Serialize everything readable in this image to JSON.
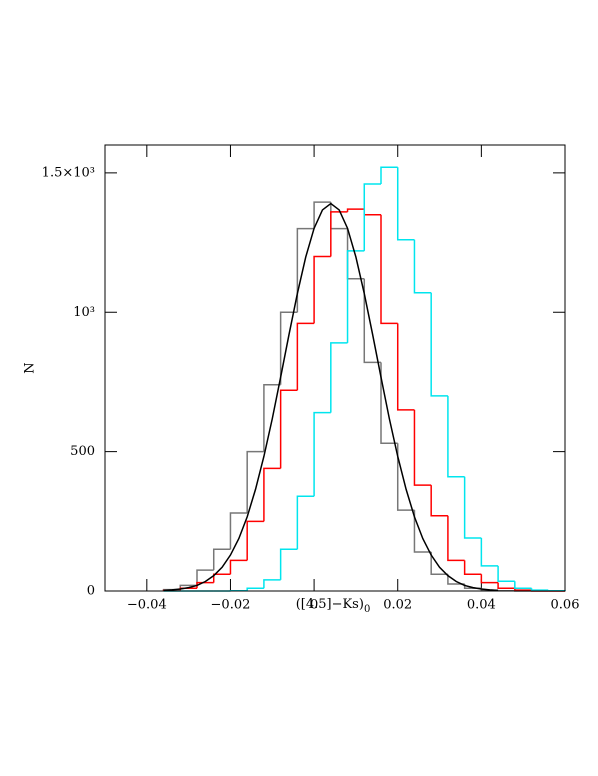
{
  "chart_data": {
    "type": "histogram",
    "x_label": "([4.5]−Ks)",
    "x_label_sub": "0",
    "y_label": "N",
    "xlim": [
      -0.05,
      0.06
    ],
    "ylim": [
      0,
      1600
    ],
    "xticks": [
      {
        "value": -0.04,
        "label": "−0.04"
      },
      {
        "value": -0.02,
        "label": "−0.02"
      },
      0,
      0.02,
      0.04,
      0.06
    ],
    "yticks": [
      0,
      500,
      {
        "value": 1000,
        "label": "10³"
      },
      {
        "value": 1500,
        "label": "1.5×10³"
      }
    ],
    "bins": [
      -0.036,
      -0.032,
      -0.028,
      -0.024,
      -0.02,
      -0.016,
      -0.012,
      -0.008,
      -0.004,
      0,
      0.004,
      0.008,
      0.012,
      0.016,
      0.02,
      0.024,
      0.028,
      0.032,
      0.036,
      0.04,
      0.044,
      0.048,
      0.052,
      0.056,
      0.06
    ],
    "series": [
      {
        "color": "#777777",
        "values": [
          5,
          20,
          75,
          150,
          280,
          500,
          740,
          1000,
          1300,
          1395,
          1300,
          1120,
          820,
          530,
          290,
          140,
          60,
          25,
          10,
          3,
          1,
          0,
          0,
          0
        ]
      },
      {
        "color": "#ff0000",
        "values": [
          2,
          10,
          30,
          60,
          110,
          250,
          440,
          720,
          960,
          1200,
          1360,
          1370,
          1350,
          960,
          650,
          380,
          270,
          110,
          60,
          30,
          10,
          3,
          0,
          0
        ]
      },
      {
        "color": "#00e5ee",
        "values": [
          0,
          0,
          0,
          0,
          1,
          10,
          40,
          150,
          340,
          640,
          890,
          1220,
          1460,
          1520,
          1260,
          1070,
          700,
          410,
          190,
          90,
          35,
          10,
          3,
          1
        ]
      }
    ],
    "curve": {
      "type": "line",
      "color": "#000000",
      "x": [
        -0.036,
        -0.034,
        -0.032,
        -0.03,
        -0.028,
        -0.026,
        -0.024,
        -0.022,
        -0.02,
        -0.018,
        -0.016,
        -0.014,
        -0.012,
        -0.01,
        -0.008,
        -0.006,
        -0.004,
        -0.002,
        0,
        0.002,
        0.004,
        0.006,
        0.008,
        0.01,
        0.012,
        0.014,
        0.016,
        0.018,
        0.02,
        0.022,
        0.024,
        0.026,
        0.028,
        0.03,
        0.032,
        0.034,
        0.036,
        0.038,
        0.04,
        0.042,
        0.044
      ],
      "values": [
        2,
        4,
        7,
        12,
        20,
        34,
        55,
        85,
        129,
        188,
        266,
        365,
        483,
        618,
        767,
        920,
        1067,
        1198,
        1301,
        1367,
        1390,
        1367,
        1301,
        1198,
        1067,
        920,
        767,
        618,
        483,
        365,
        266,
        188,
        129,
        85,
        55,
        34,
        20,
        12,
        7,
        4,
        2
      ]
    }
  }
}
